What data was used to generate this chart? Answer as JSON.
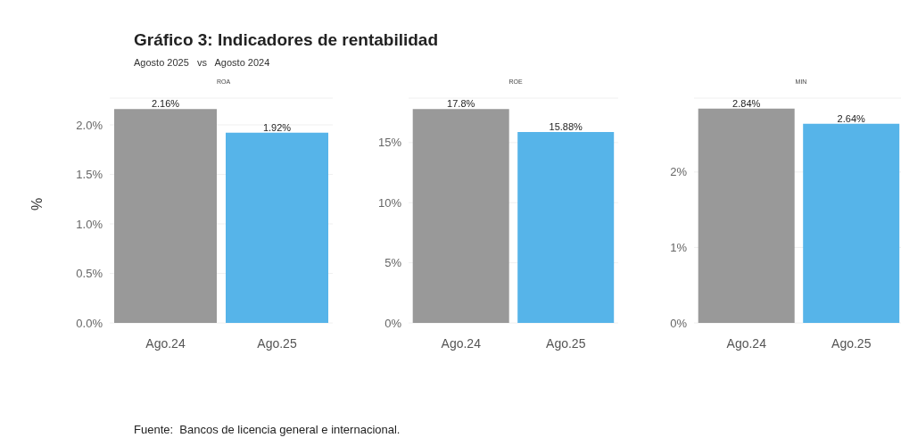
{
  "chart_data": [
    {
      "type": "other",
      "title": "Gráfico 3:  Indicadores de rentabilidad",
      "subtitle": "Agosto 2025   vs   Agosto 2024",
      "annotations": [
        "Fuente:  Bancos de licencia general e internacional."
      ]
    },
    {
      "type": "bar",
      "title": "ROA",
      "ylabel": "%",
      "categories": [
        "Ago.24",
        "Ago.25"
      ],
      "values": [
        2.16,
        1.92
      ],
      "colors": [
        "#999999",
        "#56b4e9"
      ],
      "value_labels": [
        "2.16%",
        "1.92%"
      ],
      "ylim": [
        0,
        2.27
      ],
      "yticks": [
        {
          "value": 0,
          "label": "0.0%"
        },
        {
          "value": 0.5,
          "label": "0.5%"
        },
        {
          "value": 1,
          "label": "1.0%"
        },
        {
          "value": 1.5,
          "label": "1.5%"
        },
        {
          "value": 2,
          "label": "2.0%"
        }
      ],
      "grid": "y"
    },
    {
      "type": "bar",
      "title": "ROE",
      "categories": [
        "Ago.24",
        "Ago.25"
      ],
      "values": [
        17.8,
        15.88
      ],
      "colors": [
        "#999999",
        "#56b4e9"
      ],
      "value_labels": [
        "17.8%",
        "15.88%"
      ],
      "ylim": [
        0,
        18.7
      ],
      "yticks": [
        {
          "value": 0,
          "label": "0%"
        },
        {
          "value": 5,
          "label": "5%"
        },
        {
          "value": 10,
          "label": "10%"
        },
        {
          "value": 15,
          "label": "15%"
        }
      ],
      "grid": "y"
    },
    {
      "type": "bar",
      "title": "MIN",
      "categories": [
        "Ago.24",
        "Ago.25"
      ],
      "values": [
        2.84,
        2.64
      ],
      "colors": [
        "#999999",
        "#56b4e9"
      ],
      "value_labels": [
        "2.84%",
        "2.64%"
      ],
      "ylim": [
        0,
        2.98
      ],
      "yticks": [
        {
          "value": 0,
          "label": "0%"
        },
        {
          "value": 1,
          "label": "1%"
        },
        {
          "value": 2,
          "label": "2%"
        }
      ],
      "grid": "y"
    }
  ]
}
